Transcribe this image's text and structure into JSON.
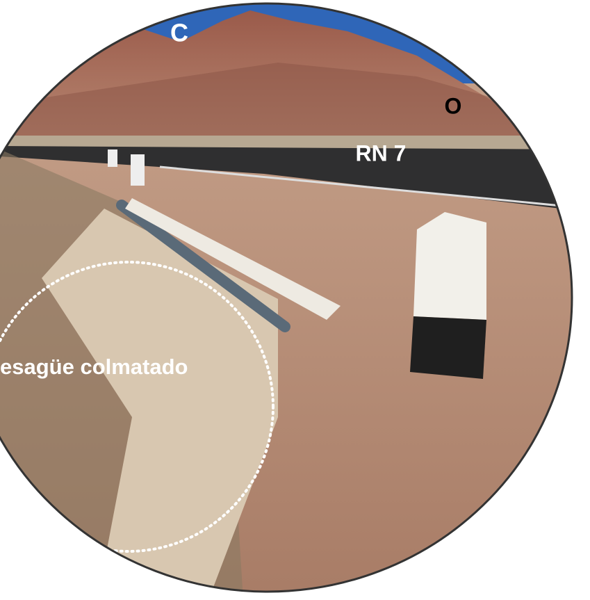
{
  "labels": {
    "top": "C",
    "right": "O",
    "road": "RN 7",
    "culvert": "esagüe colmatado"
  }
}
